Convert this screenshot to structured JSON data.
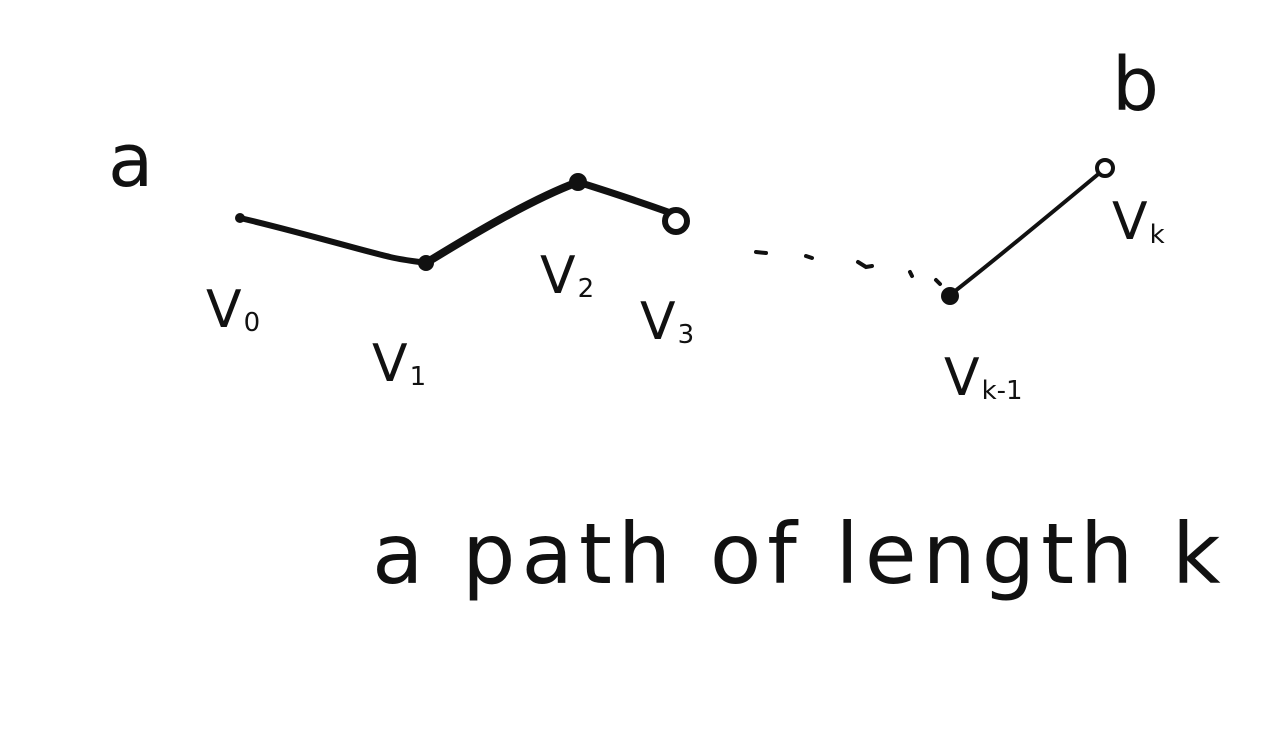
{
  "endpoints": {
    "start": "a",
    "end": "b"
  },
  "vertices": [
    {
      "id": "v0",
      "main": "V",
      "sub": "0"
    },
    {
      "id": "v1",
      "main": "V",
      "sub": "1"
    },
    {
      "id": "v2",
      "main": "V",
      "sub": "2"
    },
    {
      "id": "v3",
      "main": "V",
      "sub": "3"
    },
    {
      "id": "vk-1",
      "main": "V",
      "sub": "k-1"
    },
    {
      "id": "vk",
      "main": "V",
      "sub": "k"
    }
  ],
  "edges": [
    {
      "from": "v0",
      "to": "v1",
      "style": "solid"
    },
    {
      "from": "v1",
      "to": "v2",
      "style": "solid"
    },
    {
      "from": "v2",
      "to": "v3",
      "style": "solid"
    },
    {
      "from": "v3",
      "to": "vk-1",
      "style": "dotted"
    },
    {
      "from": "vk-1",
      "to": "vk",
      "style": "solid"
    }
  ],
  "caption": "a path of length k",
  "colors": {
    "ink": "#111111",
    "background": "#ffffff"
  }
}
